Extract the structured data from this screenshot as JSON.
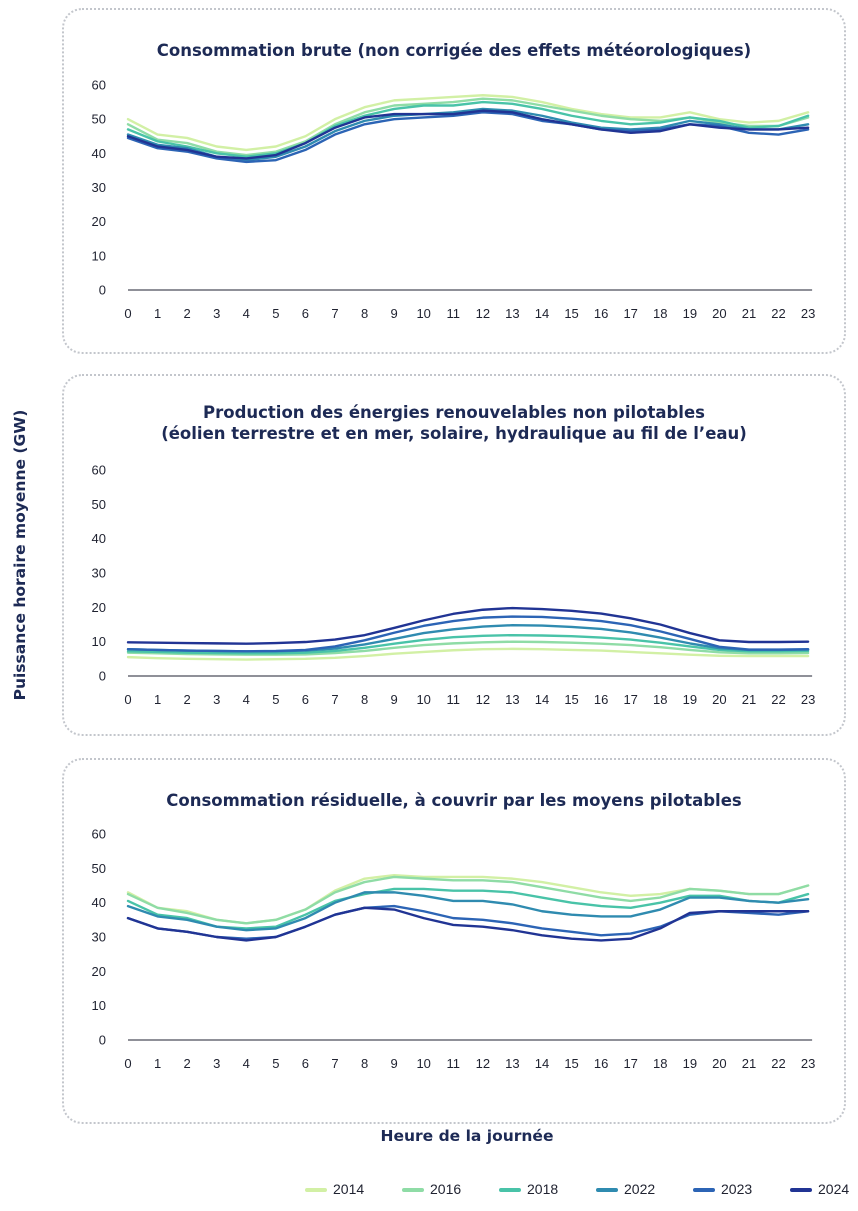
{
  "colors": {
    "2014": "#d2f0a5",
    "2016": "#8fdca6",
    "2018": "#49c3a8",
    "2022": "#2f8bb0",
    "2023": "#2c64b5",
    "2024": "#213494"
  },
  "y_axis_label": "Puissance horaire moyenne (GW)",
  "x_axis_label": "Heure de la journée",
  "legend": [
    "2014",
    "2016",
    "2018",
    "2022",
    "2023",
    "2024"
  ],
  "chart_data": [
    {
      "type": "line",
      "title": "Consommation brute (non corrigée des effets météorologiques)",
      "title_lines": [
        "Consommation brute (non corrigée des effets météorologiques)"
      ],
      "xlabel": "Heure de la journée",
      "ylabel": "Puissance horaire moyenne (GW)",
      "x": [
        0,
        1,
        2,
        3,
        4,
        5,
        6,
        7,
        8,
        9,
        10,
        11,
        12,
        13,
        14,
        15,
        16,
        17,
        18,
        19,
        20,
        21,
        22,
        23
      ],
      "ylim": [
        0,
        60
      ],
      "yticks": [
        0,
        10,
        20,
        30,
        40,
        50,
        60
      ],
      "grid": false,
      "series": [
        {
          "name": "2014",
          "values": [
            50,
            45.5,
            44.5,
            42,
            41,
            42,
            45,
            50,
            53.5,
            55.5,
            56,
            56.5,
            57,
            56.5,
            55,
            53,
            51.5,
            50.5,
            50.5,
            52,
            50,
            49,
            49.5,
            52
          ]
        },
        {
          "name": "2016",
          "values": [
            48.5,
            44,
            43,
            40.5,
            39.5,
            40.5,
            43.5,
            48.5,
            52,
            54,
            54.5,
            55,
            56,
            55.5,
            54,
            52.5,
            51,
            50,
            49.5,
            50.5,
            49,
            48,
            48,
            50.5
          ]
        },
        {
          "name": "2018",
          "values": [
            47,
            43.5,
            42,
            40,
            39,
            40,
            43,
            48,
            51,
            53,
            54,
            54,
            55,
            54.5,
            53,
            51,
            49.5,
            48.5,
            49,
            50.5,
            49.5,
            47.5,
            48,
            51
          ]
        },
        {
          "name": "2022",
          "values": [
            45.5,
            42.5,
            41.5,
            39,
            38,
            39,
            42,
            46.5,
            49.5,
            51,
            51.5,
            52,
            53,
            52.5,
            51,
            49,
            47.5,
            47,
            47.5,
            49.5,
            48.5,
            47,
            47,
            48.5
          ]
        },
        {
          "name": "2023",
          "values": [
            44.5,
            41.5,
            40.5,
            38.5,
            37.5,
            38,
            41,
            45.5,
            48.5,
            50,
            50.5,
            51,
            52,
            51.5,
            49.5,
            48.5,
            47,
            46.5,
            47,
            48.5,
            48,
            46,
            45.5,
            47
          ]
        },
        {
          "name": "2024",
          "values": [
            45,
            42,
            41,
            39,
            38.5,
            39.5,
            43,
            47.5,
            50.5,
            51.5,
            51.5,
            51.5,
            52.5,
            52,
            50,
            48.5,
            47,
            46,
            46.5,
            48.5,
            47.5,
            47,
            47,
            47.5
          ]
        }
      ]
    },
    {
      "type": "line",
      "title": "Production des énergies renouvelables non pilotables (éolien terrestre et en mer, solaire, hydraulique au fil de l’eau)",
      "title_lines": [
        "Production des énergies renouvelables non pilotables",
        "(éolien terrestre et en mer, solaire, hydraulique au fil de l’eau)"
      ],
      "xlabel": "Heure de la journée",
      "ylabel": "Puissance horaire moyenne (GW)",
      "x": [
        0,
        1,
        2,
        3,
        4,
        5,
        6,
        7,
        8,
        9,
        10,
        11,
        12,
        13,
        14,
        15,
        16,
        17,
        18,
        19,
        20,
        21,
        22,
        23
      ],
      "ylim": [
        0,
        60
      ],
      "yticks": [
        0,
        10,
        20,
        30,
        40,
        50,
        60
      ],
      "grid": false,
      "series": [
        {
          "name": "2014",
          "values": [
            5.5,
            5.2,
            5,
            4.9,
            4.8,
            4.9,
            5,
            5.3,
            5.8,
            6.5,
            7,
            7.5,
            7.8,
            7.9,
            7.8,
            7.6,
            7.4,
            7,
            6.6,
            6.2,
            5.9,
            5.8,
            5.8,
            5.8
          ]
        },
        {
          "name": "2016",
          "values": [
            6.8,
            6.6,
            6.4,
            6.3,
            6.2,
            6.2,
            6.3,
            6.7,
            7.3,
            8.2,
            9,
            9.5,
            9.8,
            10,
            9.9,
            9.7,
            9.4,
            9,
            8.4,
            7.6,
            6.9,
            6.6,
            6.6,
            6.7
          ]
        },
        {
          "name": "2018",
          "values": [
            7.2,
            7,
            6.8,
            6.7,
            6.6,
            6.6,
            6.8,
            7.3,
            8.2,
            9.4,
            10.5,
            11.3,
            11.7,
            11.9,
            11.8,
            11.6,
            11.2,
            10.6,
            9.7,
            8.6,
            7.6,
            7.2,
            7.2,
            7.3
          ]
        },
        {
          "name": "2022",
          "values": [
            7.8,
            7.6,
            7.4,
            7.3,
            7.2,
            7.2,
            7.4,
            8,
            9.2,
            10.8,
            12.5,
            13.6,
            14.4,
            14.8,
            14.7,
            14.3,
            13.7,
            12.7,
            11.2,
            9.5,
            8.1,
            7.6,
            7.6,
            7.7
          ]
        },
        {
          "name": "2023",
          "values": [
            7.8,
            7.6,
            7.4,
            7.3,
            7.2,
            7.3,
            7.6,
            8.6,
            10.4,
            12.6,
            14.6,
            16,
            17,
            17.3,
            17.2,
            16.7,
            16,
            14.8,
            13,
            10.8,
            8.5,
            7.7,
            7.7,
            7.8
          ]
        },
        {
          "name": "2024",
          "values": [
            9.8,
            9.7,
            9.6,
            9.5,
            9.4,
            9.6,
            9.9,
            10.6,
            11.9,
            14,
            16.2,
            18.1,
            19.3,
            19.8,
            19.5,
            19,
            18.2,
            16.8,
            15,
            12.5,
            10.4,
            9.9,
            9.9,
            10
          ]
        }
      ]
    },
    {
      "type": "line",
      "title": "Consommation résiduelle, à couvrir par les moyens pilotables",
      "title_lines": [
        "Consommation résiduelle, à couvrir par les moyens pilotables"
      ],
      "xlabel": "Heure de la journée",
      "ylabel": "Puissance horaire moyenne (GW)",
      "x": [
        0,
        1,
        2,
        3,
        4,
        5,
        6,
        7,
        8,
        9,
        10,
        11,
        12,
        13,
        14,
        15,
        16,
        17,
        18,
        19,
        20,
        21,
        22,
        23
      ],
      "ylim": [
        0,
        60
      ],
      "yticks": [
        0,
        10,
        20,
        30,
        40,
        50,
        60
      ],
      "grid": false,
      "series": [
        {
          "name": "2014",
          "values": [
            43,
            38.5,
            37.5,
            35,
            34,
            35,
            38,
            43.5,
            47,
            48,
            47.5,
            47.5,
            47.5,
            47,
            46,
            44.5,
            43,
            42,
            42.5,
            44,
            43.5,
            42.5,
            42.5,
            45
          ]
        },
        {
          "name": "2016",
          "values": [
            42.5,
            38.5,
            37,
            35,
            34,
            35,
            38,
            43,
            46,
            47.5,
            47,
            46.5,
            46.5,
            46,
            44.5,
            43,
            41.5,
            40.5,
            41.5,
            44,
            43.5,
            42.5,
            42.5,
            45
          ]
        },
        {
          "name": "2018",
          "values": [
            40.5,
            36.5,
            35.5,
            33,
            32.5,
            33,
            36.5,
            40.5,
            42.5,
            44,
            44,
            43.5,
            43.5,
            43,
            41.5,
            40,
            39,
            38.5,
            40,
            42,
            42,
            40.5,
            40,
            42.5
          ]
        },
        {
          "name": "2022",
          "values": [
            39,
            36,
            35,
            33,
            32,
            32.5,
            35.5,
            40,
            43,
            43,
            42,
            40.5,
            40.5,
            39.5,
            37.5,
            36.5,
            36,
            36,
            38,
            41.5,
            41.5,
            40.5,
            40,
            41
          ]
        },
        {
          "name": "2023",
          "values": [
            35.5,
            32.5,
            31.5,
            30,
            29.5,
            30,
            33,
            36.5,
            38.5,
            39,
            37.5,
            35.5,
            35,
            34,
            32.5,
            31.5,
            30.5,
            31,
            33,
            36.5,
            37.5,
            37,
            36.5,
            37.5
          ]
        },
        {
          "name": "2024",
          "values": [
            35.5,
            32.5,
            31.5,
            30,
            29,
            30,
            33,
            36.5,
            38.5,
            38,
            35.5,
            33.5,
            33,
            32,
            30.5,
            29.5,
            29,
            29.5,
            32.5,
            37,
            37.5,
            37.5,
            37.5,
            37.5
          ]
        }
      ]
    }
  ]
}
